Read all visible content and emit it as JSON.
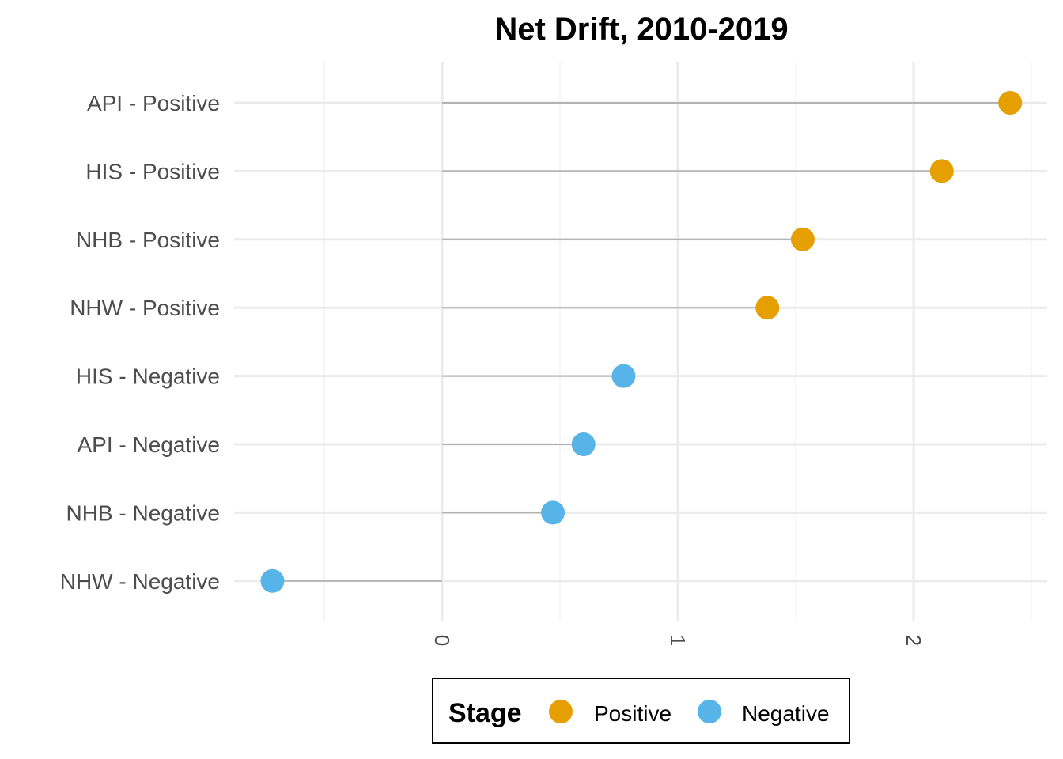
{
  "chart_data": {
    "type": "scatter",
    "subtype": "lollipop",
    "title": "Net Drift, 2010-2019",
    "xlabel": "",
    "ylabel": "",
    "xlim": [
      -0.85,
      2.55
    ],
    "x_ticks": [
      0,
      1,
      2
    ],
    "x_tick_labels": [
      "0",
      "1",
      "2"
    ],
    "x_tick_rotation": 90,
    "grid": true,
    "categories": [
      "API - Positive",
      "HIS - Positive",
      "NHB - Positive",
      "NHW - Positive",
      "HIS - Negative",
      "API - Negative",
      "NHB - Negative",
      "NHW - Negative"
    ],
    "values": [
      2.41,
      2.12,
      1.53,
      1.38,
      0.77,
      0.6,
      0.47,
      -0.72
    ],
    "stage": [
      "Positive",
      "Positive",
      "Positive",
      "Positive",
      "Negative",
      "Negative",
      "Negative",
      "Negative"
    ],
    "legend": {
      "title": "Stage",
      "position": "bottom",
      "entries": [
        {
          "label": "Positive",
          "color": "#E69F00"
        },
        {
          "label": "Negative",
          "color": "#56B4E9"
        }
      ]
    },
    "colors": {
      "Positive": "#E69F00",
      "Negative": "#56B4E9",
      "segment": "#b3b3b3",
      "grid_major": "#ebebeb",
      "grid_minor": "#f2f2f2"
    }
  }
}
